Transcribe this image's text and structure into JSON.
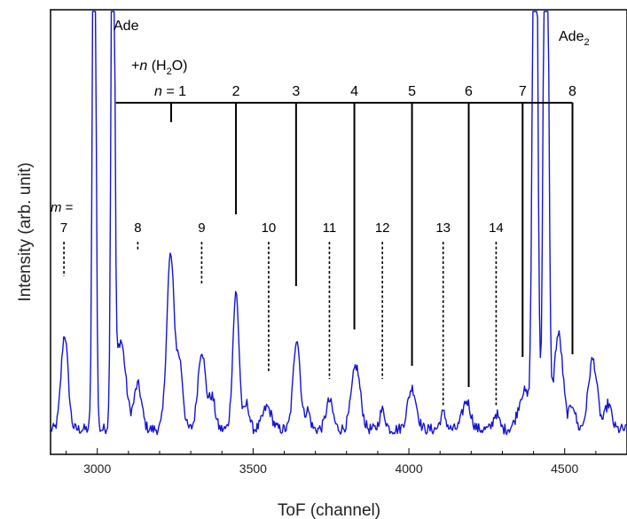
{
  "chart_data": {
    "type": "line",
    "title": "",
    "xlabel": "ToF (channel)",
    "ylabel": "Intensity (arb. unit)",
    "xlim": [
      2850,
      4700
    ],
    "xticks": [
      "3000",
      "3500",
      "4000",
      "4500"
    ],
    "y_ticks_shown": false,
    "series_color": "#1515d0",
    "peak_labels": [
      "Ade",
      "Ade",
      "2"
    ],
    "water_series": {
      "label_prefix": "+",
      "label_n": "n",
      "label_suffix": " (H",
      "label_sub": "2",
      "label_end": "O)",
      "n_eq": "n",
      "n_eq_rest": " = 1",
      "n_labels": [
        "1",
        "2",
        "3",
        "4",
        "5",
        "6",
        "7",
        "8"
      ],
      "positions": [
        3237,
        3445,
        3638,
        3825,
        4010,
        4192,
        4365,
        4525
      ]
    },
    "m_series": {
      "m_label": "m",
      "m_eq": " =",
      "labels": [
        "7",
        "8",
        "9",
        "10",
        "11",
        "12",
        "13",
        "14"
      ],
      "positions": [
        2893,
        3130,
        3335,
        3550,
        3745,
        3915,
        4110,
        4280
      ]
    },
    "peaks": [
      {
        "x": 2895,
        "y": 0.3,
        "w": 11
      },
      {
        "x": 2990,
        "y": 2.5,
        "w": 5
      },
      {
        "x": 3050,
        "y": 2.5,
        "w": 5
      },
      {
        "x": 3075,
        "y": 0.28,
        "w": 16
      },
      {
        "x": 3130,
        "y": 0.14,
        "w": 12
      },
      {
        "x": 3235,
        "y": 0.55,
        "w": 12
      },
      {
        "x": 3265,
        "y": 0.2,
        "w": 10
      },
      {
        "x": 3335,
        "y": 0.25,
        "w": 12
      },
      {
        "x": 3368,
        "y": 0.1,
        "w": 10
      },
      {
        "x": 3445,
        "y": 0.43,
        "w": 10
      },
      {
        "x": 3480,
        "y": 0.08,
        "w": 8
      },
      {
        "x": 3545,
        "y": 0.07,
        "w": 14
      },
      {
        "x": 3640,
        "y": 0.29,
        "w": 11
      },
      {
        "x": 3675,
        "y": 0.06,
        "w": 8
      },
      {
        "x": 3745,
        "y": 0.09,
        "w": 11
      },
      {
        "x": 3830,
        "y": 0.2,
        "w": 14
      },
      {
        "x": 3915,
        "y": 0.06,
        "w": 9
      },
      {
        "x": 4010,
        "y": 0.13,
        "w": 14
      },
      {
        "x": 4110,
        "y": 0.05,
        "w": 9
      },
      {
        "x": 4185,
        "y": 0.09,
        "w": 13
      },
      {
        "x": 4280,
        "y": 0.05,
        "w": 9
      },
      {
        "x": 4370,
        "y": 0.12,
        "w": 18
      },
      {
        "x": 4405,
        "y": 2.5,
        "w": 7
      },
      {
        "x": 4440,
        "y": 2.5,
        "w": 7
      },
      {
        "x": 4480,
        "y": 0.3,
        "w": 14
      },
      {
        "x": 4525,
        "y": 0.08,
        "w": 9
      },
      {
        "x": 4590,
        "y": 0.22,
        "w": 14
      },
      {
        "x": 4640,
        "y": 0.08,
        "w": 10
      }
    ],
    "baseline": 0.025,
    "ylim": [
      0,
      1.0
    ]
  }
}
